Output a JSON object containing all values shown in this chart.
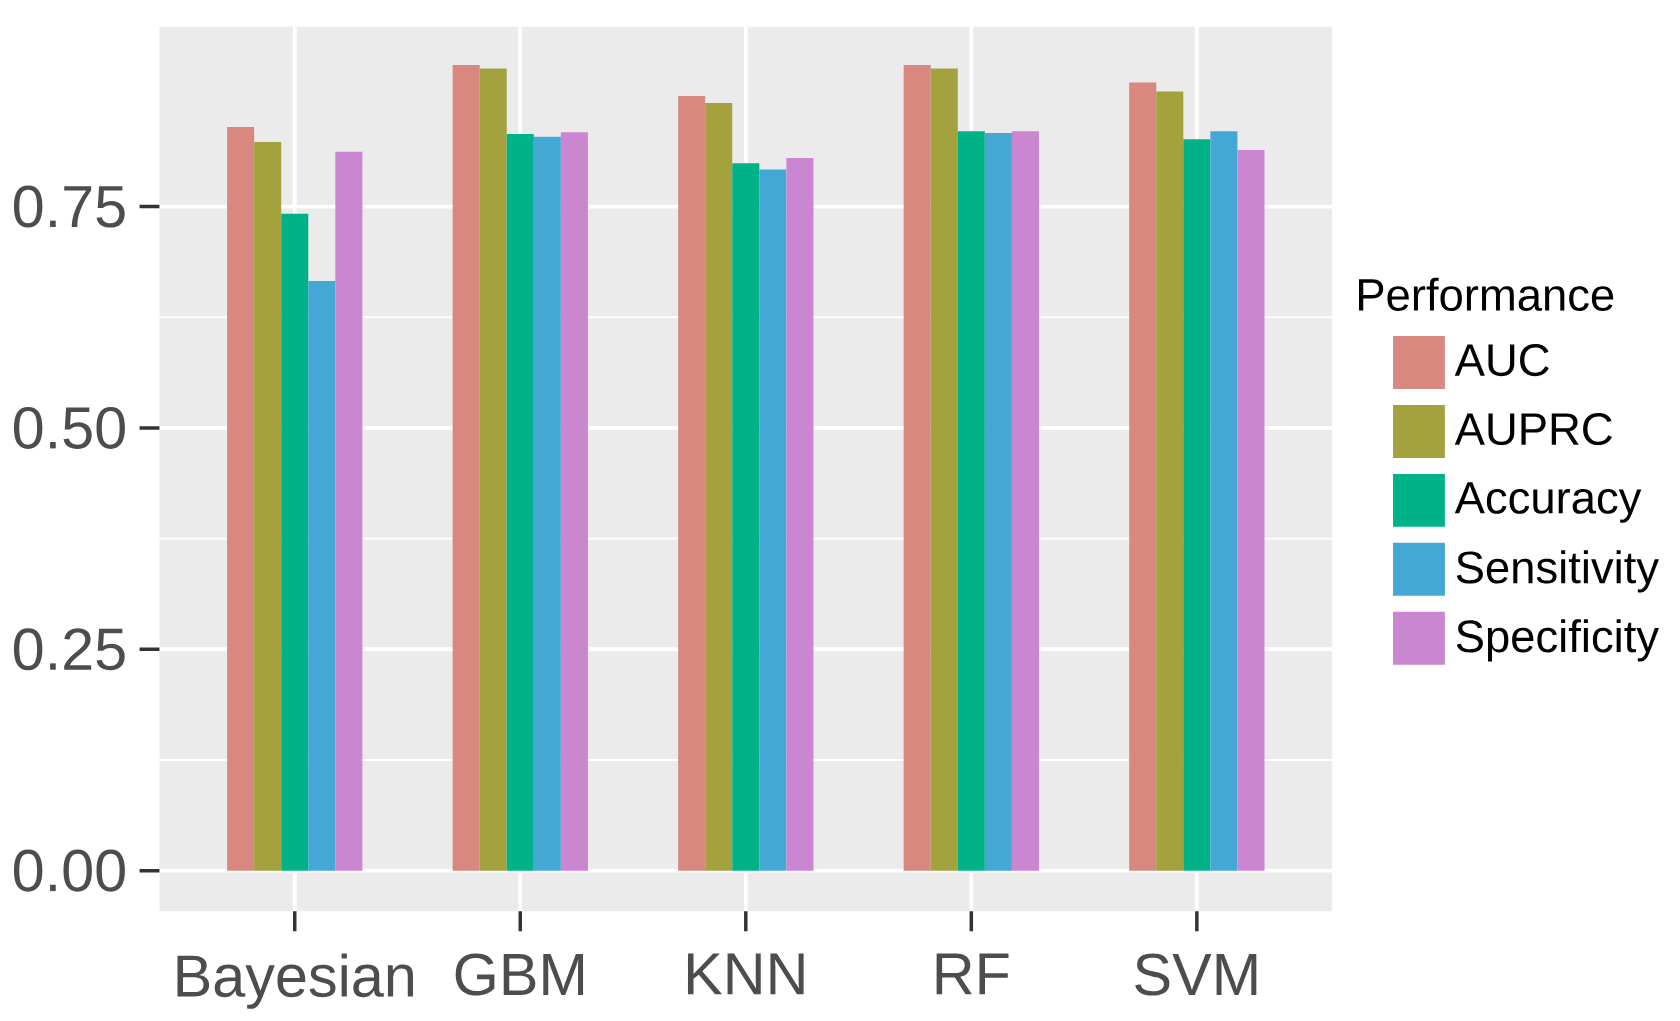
{
  "chart_data": {
    "type": "bar",
    "categories": [
      "Bayesian",
      "GBM",
      "KNN",
      "RF",
      "SVM"
    ],
    "legend_title": "Performance",
    "series": [
      {
        "name": "AUC",
        "color": "#d98880",
        "values": [
          0.84,
          0.91,
          0.875,
          0.91,
          0.89
        ]
      },
      {
        "name": "AUPRC",
        "color": "#a3a23f",
        "values": [
          0.823,
          0.906,
          0.867,
          0.906,
          0.88
        ]
      },
      {
        "name": "Accuracy",
        "color": "#00b288",
        "values": [
          0.742,
          0.832,
          0.799,
          0.835,
          0.826
        ]
      },
      {
        "name": "Sensitivity",
        "color": "#44a8d6",
        "values": [
          0.666,
          0.829,
          0.792,
          0.833,
          0.835
        ]
      },
      {
        "name": "Specificity",
        "color": "#cb86d1",
        "values": [
          0.812,
          0.834,
          0.805,
          0.835,
          0.814
        ]
      }
    ],
    "ylim": [
      -0.046,
      0.953
    ],
    "yticks": [
      {
        "value": 0,
        "label": "0.00"
      },
      {
        "value": 0.25,
        "label": "0.25"
      },
      {
        "value": 0.5,
        "label": "0.50"
      },
      {
        "value": 0.75,
        "label": "0.75"
      }
    ],
    "grid": true,
    "legend": "right"
  }
}
